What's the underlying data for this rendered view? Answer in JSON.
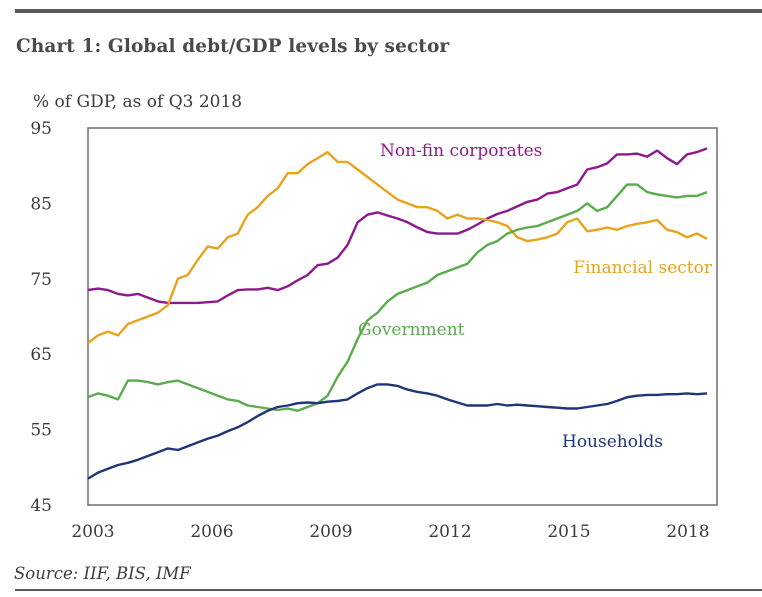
{
  "header": {
    "title": "Chart 1: Global debt/GDP levels by sector",
    "subtitle": "% of GDP, as of Q3 2018"
  },
  "footer": {
    "source": "Source: IIF, BIS, IMF"
  },
  "chart_data": {
    "type": "line",
    "title": "Chart 1: Global debt/GDP levels by sector",
    "subtitle": "% of GDP, as of Q3 2018",
    "xlabel": "",
    "ylabel": "% of GDP",
    "xlim": [
      2003.0,
      2018.75
    ],
    "ylim": [
      45,
      95
    ],
    "yticks": [
      45,
      55,
      65,
      75,
      85,
      95
    ],
    "xticks": [
      2003,
      2006,
      2009,
      2012,
      2015,
      2018
    ],
    "grid": false,
    "legend": "inline labels",
    "frequency": "quarterly",
    "x_start": 2003.0,
    "x_step": 0.25,
    "series": [
      {
        "name": "Non-fin corporates",
        "color": "#8b1a8b",
        "label_position": "top-center",
        "values": [
          73.5,
          73.7,
          73.5,
          73.0,
          72.8,
          73.0,
          72.5,
          72.0,
          71.8,
          71.8,
          71.8,
          71.8,
          71.9,
          72.0,
          72.8,
          73.5,
          73.6,
          73.6,
          73.8,
          73.5,
          74.0,
          74.8,
          75.5,
          76.8,
          77.0,
          77.8,
          79.5,
          82.5,
          83.5,
          83.8,
          83.4,
          83.0,
          82.5,
          81.8,
          81.2,
          81.0,
          81.0,
          81.0,
          81.5,
          82.2,
          83.0,
          83.6,
          84.0,
          84.6,
          85.2,
          85.5,
          86.3,
          86.5,
          87.0,
          87.5,
          89.5,
          89.8,
          90.3,
          91.5,
          91.5,
          91.6,
          91.2,
          92.0,
          91.0,
          90.2,
          91.5,
          91.8,
          92.3
        ]
      },
      {
        "name": "Financial sector",
        "color": "#e8a31c",
        "label_position": "right",
        "values": [
          66.5,
          67.5,
          68.0,
          67.5,
          69.0,
          69.5,
          70.0,
          70.5,
          71.5,
          75.0,
          75.5,
          77.5,
          79.3,
          79.0,
          80.5,
          81.0,
          83.5,
          84.5,
          86.0,
          87.0,
          89.0,
          89.0,
          90.2,
          91.0,
          91.8,
          90.5,
          90.5,
          89.5,
          88.5,
          87.5,
          86.5,
          85.5,
          85.0,
          84.5,
          84.5,
          84.0,
          83.0,
          83.5,
          83.0,
          83.0,
          82.8,
          82.5,
          82.0,
          80.5,
          80.0,
          80.2,
          80.5,
          81.0,
          82.5,
          83.0,
          81.3,
          81.5,
          81.8,
          81.5,
          82.0,
          82.3,
          82.5,
          82.8,
          81.5,
          81.2,
          80.5,
          81.0,
          80.3
        ]
      },
      {
        "name": "Government",
        "color": "#5aab4e",
        "label_position": "center",
        "values": [
          59.3,
          59.8,
          59.5,
          59.0,
          61.5,
          61.5,
          61.3,
          61.0,
          61.3,
          61.5,
          61.0,
          60.5,
          60.0,
          59.5,
          59.0,
          58.8,
          58.2,
          58.0,
          57.8,
          57.6,
          57.8,
          57.5,
          58.0,
          58.5,
          59.5,
          62.0,
          64.0,
          67.0,
          69.5,
          70.5,
          72.0,
          73.0,
          73.5,
          74.0,
          74.5,
          75.5,
          76.0,
          76.5,
          77.0,
          78.5,
          79.5,
          80.0,
          81.0,
          81.5,
          81.8,
          82.0,
          82.5,
          83.0,
          83.5,
          84.0,
          85.0,
          84.0,
          84.5,
          86.0,
          87.5,
          87.5,
          86.5,
          86.2,
          86.0,
          85.8,
          86.0,
          86.0,
          86.5
        ]
      },
      {
        "name": "Households",
        "color": "#1f3577",
        "label_position": "bottom-right",
        "values": [
          48.5,
          49.3,
          49.8,
          50.3,
          50.6,
          51.0,
          51.5,
          52.0,
          52.5,
          52.3,
          52.8,
          53.3,
          53.8,
          54.2,
          54.8,
          55.3,
          56.0,
          56.8,
          57.5,
          58.0,
          58.2,
          58.5,
          58.6,
          58.5,
          58.7,
          58.8,
          59.0,
          59.8,
          60.5,
          61.0,
          61.0,
          60.8,
          60.3,
          60.0,
          59.8,
          59.5,
          59.0,
          58.6,
          58.2,
          58.2,
          58.2,
          58.4,
          58.2,
          58.3,
          58.2,
          58.1,
          58.0,
          57.9,
          57.8,
          57.8,
          58.0,
          58.2,
          58.4,
          58.8,
          59.3,
          59.5,
          59.6,
          59.6,
          59.7,
          59.7,
          59.8,
          59.7,
          59.8
        ]
      }
    ]
  }
}
